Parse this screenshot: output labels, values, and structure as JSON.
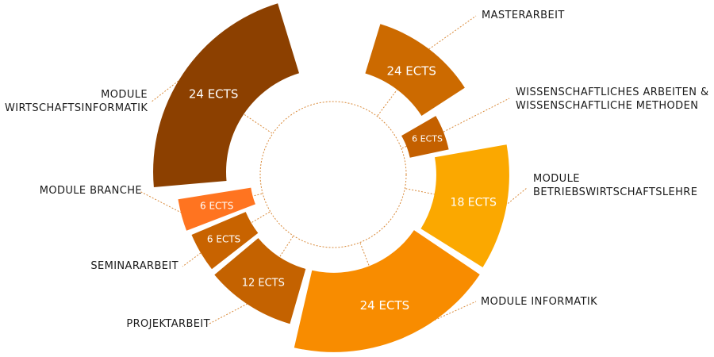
{
  "chart_data": {
    "type": "pie",
    "variant": "donut",
    "unit": "ECTS",
    "legend": "none",
    "slices": [
      {
        "label_lines": [
          "MASTERARBEIT"
        ],
        "value": 24,
        "value_label": "24 ECTS",
        "color": "#CC6A00"
      },
      {
        "label_lines": [
          "WISSENSCHAFTLICHES ARBEITEN &",
          "WISSENSCHAFTLICHE METHODEN"
        ],
        "value": 6,
        "value_label": "6 ECTS",
        "color": "#C46000"
      },
      {
        "label_lines": [
          "MODULE",
          "BETRIEBSWIRTSCHAFTSLEHRE"
        ],
        "value": 18,
        "value_label": "18 ECTS",
        "color": "#FBA800"
      },
      {
        "label_lines": [
          "MODULE INFORMATIK"
        ],
        "value": 24,
        "value_label": "24 ECTS",
        "color": "#F88C00"
      },
      {
        "label_lines": [
          "PROJEKTARBEIT"
        ],
        "value": 12,
        "value_label": "12 ECTS",
        "color": "#C46200"
      },
      {
        "label_lines": [
          "SEMINARARBEIT"
        ],
        "value": 6,
        "value_label": "6 ECTS",
        "color": "#C86300"
      },
      {
        "label_lines": [
          "MODULE BRANCHE"
        ],
        "value": 6,
        "value_label": "6 ECTS",
        "color": "#FF7420"
      },
      {
        "label_lines": [
          "MODULE",
          "WIRTSCHAFTSINFORMATIK"
        ],
        "value": 24,
        "value_label": "24 ECTS",
        "color": "#8C4000"
      }
    ]
  }
}
